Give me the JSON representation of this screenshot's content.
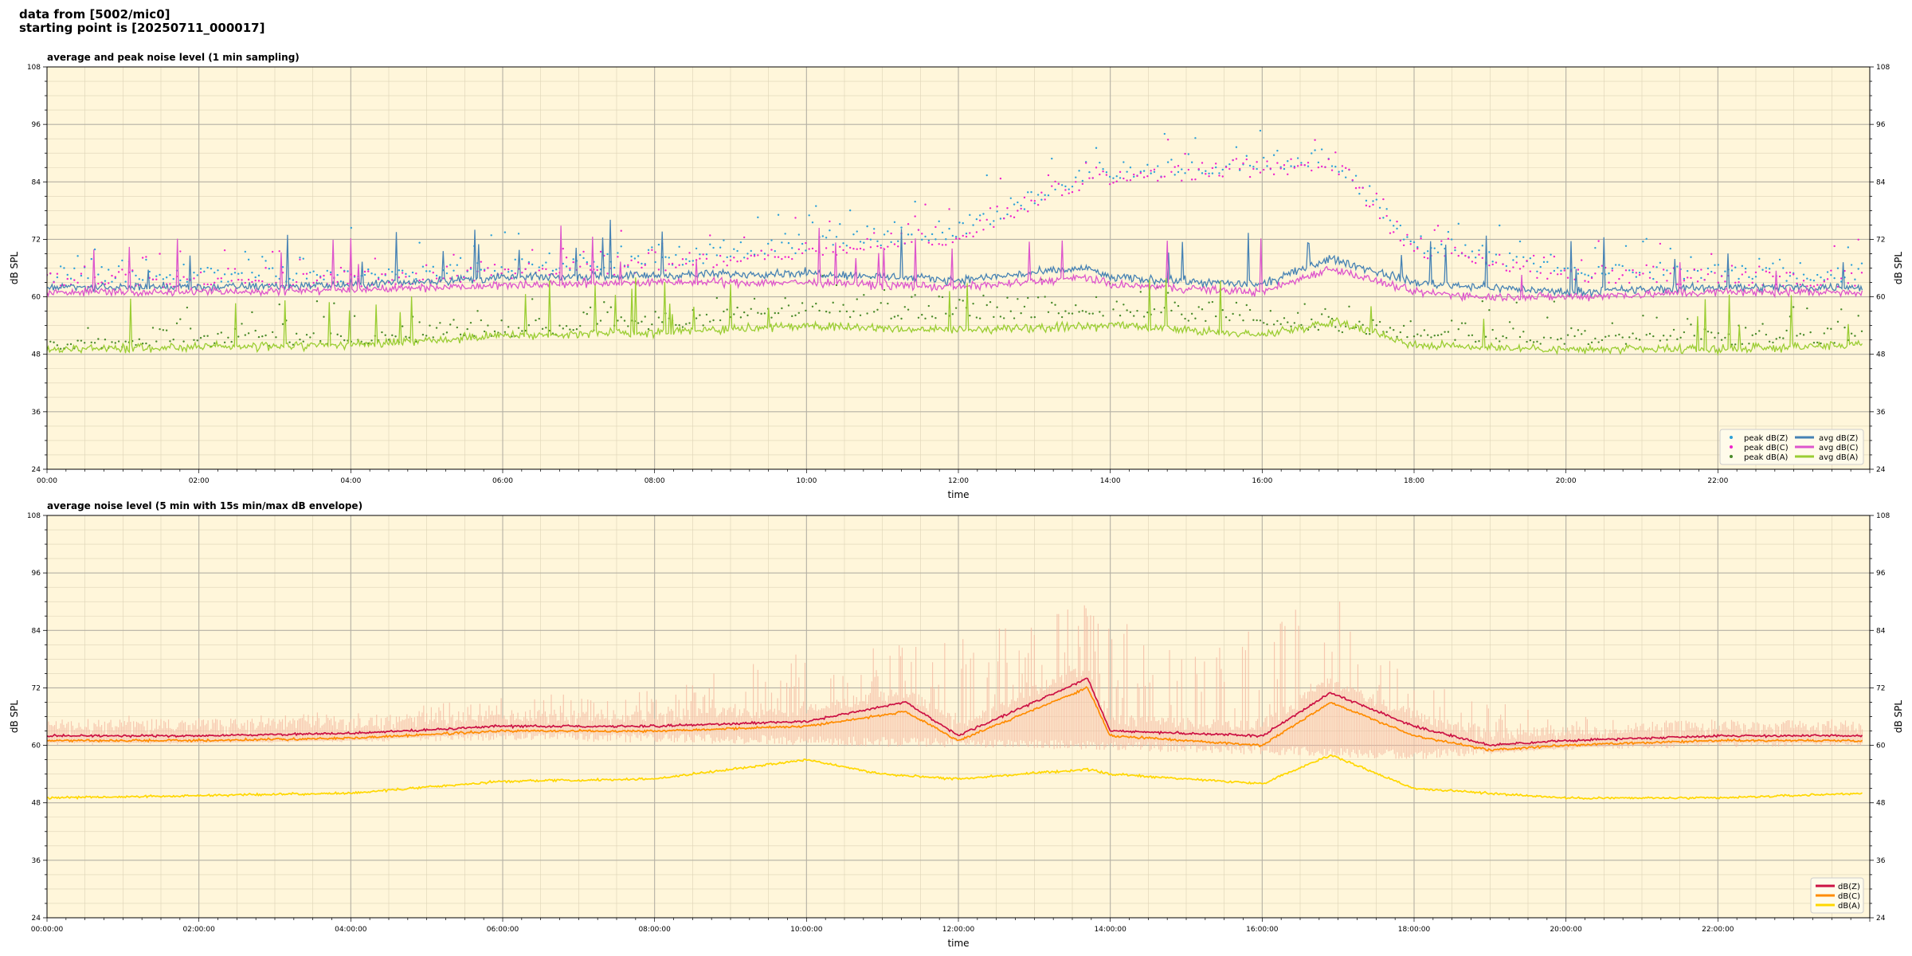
{
  "header": {
    "line1": "data from [5002/mic0]",
    "line2": "starting point is [20250711_000017]"
  },
  "chart_data": [
    {
      "type": "line",
      "title": "average and peak noise level (1 min sampling)",
      "xlabel": "time",
      "ylabel": "dB SPL",
      "xlim_hours": [
        0,
        24
      ],
      "ylim": [
        24,
        108
      ],
      "yticks": [
        24,
        36,
        48,
        60,
        72,
        84,
        96,
        108
      ],
      "xtick_labels": [
        "00:00",
        "02:00",
        "04:00",
        "06:00",
        "08:00",
        "10:00",
        "12:00",
        "14:00",
        "16:00",
        "18:00",
        "20:00",
        "22:00"
      ],
      "grid": true,
      "legend_position": "lower-right",
      "legend_columns": 2,
      "series": [
        {
          "name": "peak dB(Z)",
          "kind": "scatter",
          "color": "#2ca0d8",
          "approx_values": [
            {
              "x": 0,
              "y": 65
            },
            {
              "x": 4,
              "y": 65
            },
            {
              "x": 8,
              "y": 68
            },
            {
              "x": 10,
              "y": 71
            },
            {
              "x": 12,
              "y": 74
            },
            {
              "x": 13.7,
              "y": 86
            },
            {
              "x": 16.9,
              "y": 89
            },
            {
              "x": 18,
              "y": 71
            },
            {
              "x": 20,
              "y": 66
            },
            {
              "x": 23.9,
              "y": 65
            }
          ]
        },
        {
          "name": "peak dB(C)",
          "kind": "scatter",
          "color": "#ee22cc",
          "approx_values": [
            {
              "x": 0,
              "y": 64
            },
            {
              "x": 4,
              "y": 64
            },
            {
              "x": 8,
              "y": 67
            },
            {
              "x": 10,
              "y": 70
            },
            {
              "x": 12,
              "y": 73
            },
            {
              "x": 13.7,
              "y": 85
            },
            {
              "x": 16.9,
              "y": 88
            },
            {
              "x": 18,
              "y": 70
            },
            {
              "x": 20,
              "y": 65
            },
            {
              "x": 23.9,
              "y": 64
            }
          ]
        },
        {
          "name": "peak dB(A)",
          "kind": "scatter",
          "color": "#4a8a2a",
          "approx_values": [
            {
              "x": 0,
              "y": 51
            },
            {
              "x": 4,
              "y": 52
            },
            {
              "x": 8,
              "y": 55
            },
            {
              "x": 10,
              "y": 58
            },
            {
              "x": 12,
              "y": 57
            },
            {
              "x": 14,
              "y": 58
            },
            {
              "x": 16,
              "y": 56
            },
            {
              "x": 18,
              "y": 53
            },
            {
              "x": 20,
              "y": 52
            },
            {
              "x": 23.9,
              "y": 52
            }
          ]
        },
        {
          "name": "avg dB(Z)",
          "kind": "line",
          "color": "#4682b4",
          "approx_values": [
            {
              "x": 0,
              "y": 62
            },
            {
              "x": 2,
              "y": 62
            },
            {
              "x": 4,
              "y": 62.5
            },
            {
              "x": 6,
              "y": 64
            },
            {
              "x": 8,
              "y": 64.5
            },
            {
              "x": 10,
              "y": 65
            },
            {
              "x": 12,
              "y": 63.5
            },
            {
              "x": 13.7,
              "y": 66
            },
            {
              "x": 14,
              "y": 64
            },
            {
              "x": 16,
              "y": 62.5
            },
            {
              "x": 16.9,
              "y": 68
            },
            {
              "x": 18,
              "y": 63
            },
            {
              "x": 19,
              "y": 62
            },
            {
              "x": 20,
              "y": 61
            },
            {
              "x": 22,
              "y": 62
            },
            {
              "x": 23.9,
              "y": 62
            }
          ]
        },
        {
          "name": "avg dB(C)",
          "kind": "line",
          "color": "#dd55cc",
          "approx_values": [
            {
              "x": 0,
              "y": 61
            },
            {
              "x": 2,
              "y": 61
            },
            {
              "x": 4,
              "y": 61.5
            },
            {
              "x": 6,
              "y": 62.5
            },
            {
              "x": 8,
              "y": 63
            },
            {
              "x": 10,
              "y": 63
            },
            {
              "x": 12,
              "y": 62
            },
            {
              "x": 13.7,
              "y": 64
            },
            {
              "x": 14,
              "y": 62.5
            },
            {
              "x": 16,
              "y": 61
            },
            {
              "x": 16.9,
              "y": 66
            },
            {
              "x": 18,
              "y": 61
            },
            {
              "x": 19,
              "y": 60
            },
            {
              "x": 20,
              "y": 60
            },
            {
              "x": 22,
              "y": 61
            },
            {
              "x": 23.9,
              "y": 61
            }
          ]
        },
        {
          "name": "avg dB(A)",
          "kind": "line",
          "color": "#9acd32",
          "approx_values": [
            {
              "x": 0,
              "y": 49
            },
            {
              "x": 2,
              "y": 49.5
            },
            {
              "x": 4,
              "y": 50
            },
            {
              "x": 6,
              "y": 52
            },
            {
              "x": 8,
              "y": 52.5
            },
            {
              "x": 10,
              "y": 54
            },
            {
              "x": 12,
              "y": 53
            },
            {
              "x": 14,
              "y": 54
            },
            {
              "x": 16,
              "y": 52
            },
            {
              "x": 17,
              "y": 55
            },
            {
              "x": 18,
              "y": 50
            },
            {
              "x": 20,
              "y": 49
            },
            {
              "x": 22,
              "y": 49
            },
            {
              "x": 23.9,
              "y": 50
            }
          ]
        }
      ]
    },
    {
      "type": "line",
      "title": "average noise level (5 min with 15s min/max dB envelope)",
      "xlabel": "time",
      "ylabel": "dB SPL",
      "xlim_hours": [
        0,
        24
      ],
      "ylim": [
        24,
        108
      ],
      "yticks": [
        24,
        36,
        48,
        60,
        72,
        84,
        96,
        108
      ],
      "xtick_labels": [
        "00:00:00",
        "02:00:00",
        "04:00:00",
        "06:00:00",
        "08:00:00",
        "10:00:00",
        "12:00:00",
        "14:00:00",
        "16:00:00",
        "18:00:00",
        "20:00:00",
        "22:00:00"
      ],
      "grid": true,
      "legend_position": "lower-right",
      "legend_columns": 1,
      "envelope": {
        "color": "#f4b8a0",
        "approx_max": [
          {
            "x": 0,
            "y": 66
          },
          {
            "x": 4,
            "y": 67
          },
          {
            "x": 6,
            "y": 70
          },
          {
            "x": 8,
            "y": 72
          },
          {
            "x": 10,
            "y": 80
          },
          {
            "x": 12,
            "y": 82
          },
          {
            "x": 13.7,
            "y": 90
          },
          {
            "x": 15,
            "y": 80
          },
          {
            "x": 16.9,
            "y": 92
          },
          {
            "x": 18,
            "y": 75
          },
          {
            "x": 20,
            "y": 66
          },
          {
            "x": 23.9,
            "y": 65
          }
        ],
        "approx_min": [
          {
            "x": 0,
            "y": 60
          },
          {
            "x": 6,
            "y": 61
          },
          {
            "x": 10,
            "y": 60
          },
          {
            "x": 14,
            "y": 59
          },
          {
            "x": 16,
            "y": 58
          },
          {
            "x": 18,
            "y": 57
          },
          {
            "x": 20,
            "y": 59
          },
          {
            "x": 23.9,
            "y": 60
          }
        ]
      },
      "series": [
        {
          "name": "dB(Z)",
          "kind": "line",
          "color": "#cc1144",
          "approx_values": [
            {
              "x": 0,
              "y": 62
            },
            {
              "x": 2,
              "y": 62
            },
            {
              "x": 4,
              "y": 62.5
            },
            {
              "x": 6,
              "y": 64
            },
            {
              "x": 8,
              "y": 64
            },
            {
              "x": 10,
              "y": 65
            },
            {
              "x": 11.3,
              "y": 69
            },
            {
              "x": 12,
              "y": 62
            },
            {
              "x": 13.7,
              "y": 74
            },
            {
              "x": 14,
              "y": 63
            },
            {
              "x": 16,
              "y": 62
            },
            {
              "x": 16.9,
              "y": 71
            },
            {
              "x": 18,
              "y": 64
            },
            {
              "x": 19,
              "y": 60
            },
            {
              "x": 20,
              "y": 61
            },
            {
              "x": 22,
              "y": 62
            },
            {
              "x": 23.9,
              "y": 62
            }
          ]
        },
        {
          "name": "dB(C)",
          "kind": "line",
          "color": "#ff8c00",
          "approx_values": [
            {
              "x": 0,
              "y": 61
            },
            {
              "x": 2,
              "y": 61
            },
            {
              "x": 4,
              "y": 61.5
            },
            {
              "x": 6,
              "y": 63
            },
            {
              "x": 8,
              "y": 63
            },
            {
              "x": 10,
              "y": 64
            },
            {
              "x": 11.3,
              "y": 67
            },
            {
              "x": 12,
              "y": 61
            },
            {
              "x": 13.7,
              "y": 72
            },
            {
              "x": 14,
              "y": 62
            },
            {
              "x": 16,
              "y": 60
            },
            {
              "x": 16.9,
              "y": 69
            },
            {
              "x": 18,
              "y": 62
            },
            {
              "x": 19,
              "y": 59
            },
            {
              "x": 20,
              "y": 60
            },
            {
              "x": 22,
              "y": 61
            },
            {
              "x": 23.9,
              "y": 61
            }
          ]
        },
        {
          "name": "dB(A)",
          "kind": "line",
          "color": "#ffd700",
          "approx_values": [
            {
              "x": 0,
              "y": 49
            },
            {
              "x": 2,
              "y": 49.5
            },
            {
              "x": 4,
              "y": 50
            },
            {
              "x": 6,
              "y": 52.5
            },
            {
              "x": 8,
              "y": 53
            },
            {
              "x": 10,
              "y": 57
            },
            {
              "x": 11,
              "y": 54
            },
            {
              "x": 12,
              "y": 53
            },
            {
              "x": 13.7,
              "y": 55
            },
            {
              "x": 14,
              "y": 54
            },
            {
              "x": 16,
              "y": 52
            },
            {
              "x": 16.9,
              "y": 58
            },
            {
              "x": 18,
              "y": 51
            },
            {
              "x": 20,
              "y": 49
            },
            {
              "x": 22,
              "y": 49
            },
            {
              "x": 23.9,
              "y": 50
            }
          ]
        }
      ]
    }
  ]
}
